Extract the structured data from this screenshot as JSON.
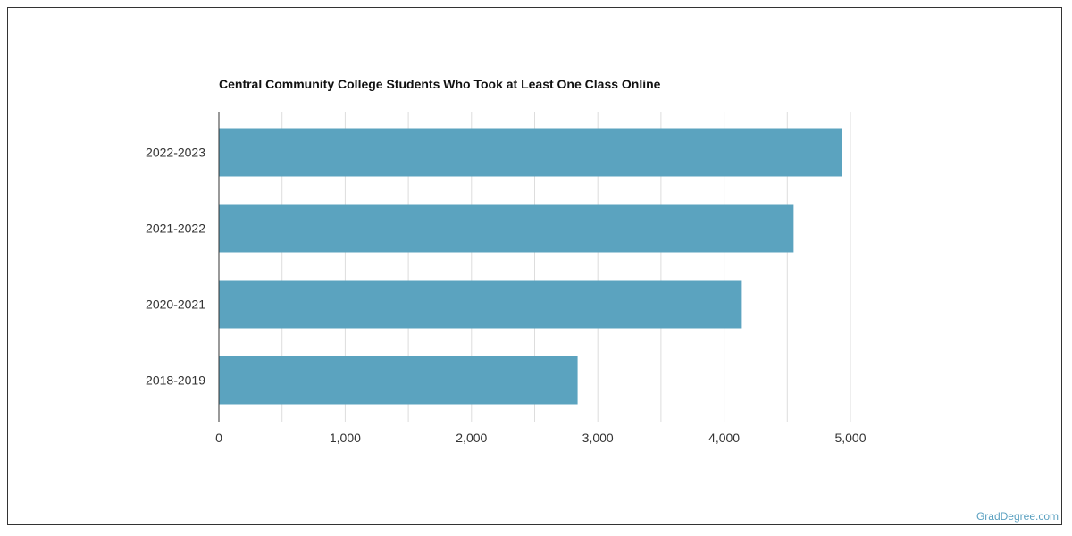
{
  "chart_data": {
    "type": "bar",
    "orientation": "horizontal",
    "title": "Central Community College Students Who Took at Least One Class Online",
    "categories": [
      "2022-2023",
      "2021-2022",
      "2020-2021",
      "2018-2019"
    ],
    "values": [
      4930,
      4550,
      4140,
      2840
    ],
    "xlim": [
      0,
      5000
    ],
    "xticks": [
      0,
      1000,
      2000,
      3000,
      4000,
      5000
    ],
    "xtick_labels": [
      "0",
      "1,000",
      "2,000",
      "3,000",
      "4,000",
      "5,000"
    ],
    "grid": true,
    "bar_color": "#5ba3bf"
  },
  "watermark": "GradDegree.com"
}
